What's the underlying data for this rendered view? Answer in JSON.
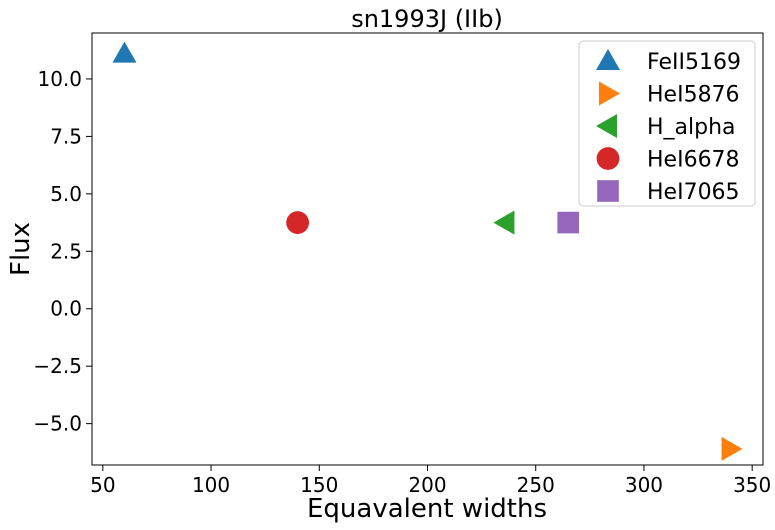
{
  "chart_data": {
    "type": "scatter",
    "title": "sn1993J (IIb)",
    "xlabel": "Equavalent widths",
    "ylabel": "Flux",
    "xlim": [
      45,
      355
    ],
    "ylim": [
      -6.8,
      12.0
    ],
    "x_ticks": [
      50,
      100,
      150,
      200,
      250,
      300,
      350
    ],
    "x_tick_labels": [
      "50",
      "100",
      "150",
      "200",
      "250",
      "300",
      "350"
    ],
    "y_ticks": [
      10.0,
      7.5,
      5.0,
      2.5,
      0.0,
      -2.5,
      -5.0
    ],
    "y_tick_labels": [
      "10.0",
      "7.5",
      "5.0",
      "2.5",
      "0.0",
      "−2.5",
      "−5.0"
    ],
    "grid": false,
    "legend_position": "top-right",
    "series": [
      {
        "name": "FeII5169",
        "marker": "triangle-up",
        "color": "#1f77b4",
        "x": [
          60
        ],
        "y": [
          11.1
        ]
      },
      {
        "name": "HeI5876",
        "marker": "triangle-right",
        "color": "#ff7f0e",
        "x": [
          340
        ],
        "y": [
          -6.1
        ]
      },
      {
        "name": "H_alpha",
        "marker": "triangle-left",
        "color": "#2ca02c",
        "x": [
          236
        ],
        "y": [
          3.75
        ]
      },
      {
        "name": "HeI6678",
        "marker": "circle",
        "color": "#d62728",
        "x": [
          140
        ],
        "y": [
          3.75
        ]
      },
      {
        "name": "HeI7065",
        "marker": "square",
        "color": "#9467bd",
        "x": [
          265
        ],
        "y": [
          3.75
        ]
      }
    ]
  }
}
